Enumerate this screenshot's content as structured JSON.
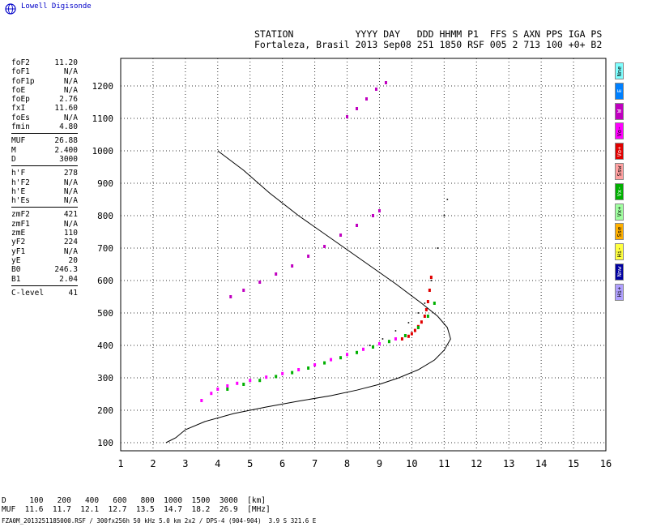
{
  "logo": {
    "text": "Lowell Digisonde"
  },
  "header": {
    "line1": "STATION           YYYY DAY   DDD HHMM P1  FFS S AXN PPS IGA PS",
    "line2": "Fortaleza, Brasil 2013 Sep08 251 1850 RSF 005 2 713 100 +0+ B2"
  },
  "params": {
    "group1": [
      {
        "k": "foF2",
        "v": "11.20"
      },
      {
        "k": "foF1",
        "v": "N/A"
      },
      {
        "k": "foF1p",
        "v": "N/A"
      },
      {
        "k": "foE",
        "v": "N/A"
      },
      {
        "k": "foEp",
        "v": "2.76"
      },
      {
        "k": "fxI",
        "v": "11.60"
      },
      {
        "k": "foEs",
        "v": "N/A"
      },
      {
        "k": "fmin",
        "v": "4.80"
      }
    ],
    "group2": [
      {
        "k": "MUF",
        "v": "26.88"
      },
      {
        "k": "M",
        "v": "2.400"
      },
      {
        "k": "D",
        "v": "3000"
      }
    ],
    "group3": [
      {
        "k": "h'F",
        "v": "278"
      },
      {
        "k": "h'F2",
        "v": "N/A"
      },
      {
        "k": "h'E",
        "v": "N/A"
      },
      {
        "k": "h'Es",
        "v": "N/A"
      }
    ],
    "group4": [
      {
        "k": "zmF2",
        "v": "421"
      },
      {
        "k": "zmF1",
        "v": "N/A"
      },
      {
        "k": "zmE",
        "v": "110"
      },
      {
        "k": "yF2",
        "v": "224"
      },
      {
        "k": "yF1",
        "v": "N/A"
      },
      {
        "k": "yE",
        "v": "20"
      },
      {
        "k": "B0",
        "v": "246.3"
      },
      {
        "k": "B1",
        "v": "2.04"
      }
    ],
    "group5": [
      {
        "k": "C-level",
        "v": "41"
      }
    ]
  },
  "legend": [
    {
      "label": "Nne",
      "color": "#7fffff"
    },
    {
      "label": "E",
      "color": "#0080ff"
    },
    {
      "label": "W",
      "color": "#c000c0"
    },
    {
      "label": "Vo-",
      "color": "#ff00ff"
    },
    {
      "label": "Vo+",
      "color": "#e00000"
    },
    {
      "label": "Ssw",
      "color": "#ffa0a0"
    },
    {
      "label": "Vx-",
      "color": "#00b000"
    },
    {
      "label": "Vx+",
      "color": "#a0ffa0"
    },
    {
      "label": "Sse",
      "color": "#ffb000"
    },
    {
      "label": "Hi-",
      "color": "#ffff40"
    },
    {
      "label": "Nnw",
      "color": "#0000a0"
    },
    {
      "label": "Hi+",
      "color": "#b0a0ff"
    }
  ],
  "muf_table": {
    "line1": "D     100   200   400   600   800  1000  1500  3000  [km]",
    "line2": "MUF  11.6  11.7  12.1  12.7  13.5  14.7  18.2  26.9  [MHz]"
  },
  "footer": {
    "text": "FZA0M_2013251185000.RSF / 300fx256h 50 kHz 5.0 km 2x2 / DPS-4 (904-904)  3.9 S 321.6 E"
  },
  "chart_data": {
    "type": "scatter",
    "xlabel": "",
    "ylabel": "",
    "xlim": [
      1,
      16
    ],
    "ylim": [
      75,
      1285
    ],
    "xticks": [
      1,
      2,
      3,
      4,
      5,
      6,
      7,
      8,
      9,
      10,
      11,
      12,
      13,
      14,
      15,
      16
    ],
    "yticks": [
      100,
      200,
      300,
      400,
      500,
      600,
      700,
      800,
      900,
      1000,
      1100,
      1200
    ],
    "grid": true,
    "series": [
      {
        "name": "Vo+",
        "color": "#e00000",
        "x": [
          9.7,
          9.9,
          10.0,
          10.1,
          10.2,
          10.3,
          10.4,
          10.45,
          10.5,
          10.55,
          10.6
        ],
        "y": [
          420,
          428,
          436,
          446,
          458,
          472,
          490,
          510,
          535,
          570,
          610
        ]
      },
      {
        "name": "Vo-",
        "color": "#ff00ff",
        "x": [
          3.5,
          3.8,
          4.0,
          4.3,
          4.6,
          5.0,
          5.5,
          6.0,
          6.5,
          7.0,
          7.5,
          8.0,
          8.5,
          9.0,
          9.5
        ],
        "y": [
          230,
          252,
          265,
          275,
          283,
          292,
          302,
          313,
          325,
          340,
          356,
          372,
          388,
          405,
          420
        ]
      },
      {
        "name": "Vx-",
        "color": "#00b000",
        "x": [
          4.3,
          4.8,
          5.3,
          5.8,
          6.3,
          6.8,
          7.3,
          7.8,
          8.3,
          8.8,
          9.3,
          9.8,
          10.2,
          10.5,
          10.7
        ],
        "y": [
          265,
          280,
          292,
          304,
          316,
          330,
          346,
          362,
          378,
          395,
          412,
          430,
          455,
          490,
          530
        ]
      },
      {
        "name": "Vo- 2F",
        "color": "#c000c0",
        "x": [
          4.4,
          4.8,
          5.3,
          5.8,
          6.3,
          6.8,
          7.3,
          7.8,
          8.3,
          8.8,
          9.0
        ],
        "y": [
          550,
          570,
          595,
          620,
          645,
          675,
          705,
          740,
          770,
          800,
          815
        ]
      },
      {
        "name": "Vo- 3F",
        "color": "#c000c0",
        "x": [
          8.0,
          8.3,
          8.6,
          8.9,
          9.2
        ],
        "y": [
          1105,
          1130,
          1160,
          1190,
          1210
        ]
      },
      {
        "name": "Profile",
        "color": "#000000",
        "x": [
          2.4,
          2.7,
          3.0,
          3.6,
          4.5,
          5.5,
          6.5,
          7.5,
          8.3,
          9.0,
          9.6,
          10.2,
          10.7,
          11.0,
          11.2,
          11.1,
          10.8,
          10.3,
          9.5,
          8.5,
          7.5,
          6.5,
          5.6,
          4.8,
          4.0
        ],
        "y": [
          100,
          115,
          140,
          165,
          190,
          210,
          228,
          245,
          262,
          280,
          300,
          325,
          355,
          385,
          420,
          455,
          490,
          530,
          590,
          660,
          730,
          800,
          870,
          940,
          1000
        ]
      },
      {
        "name": "Trace",
        "color": "#000000",
        "x": [
          8.7,
          9.1,
          9.5,
          9.9,
          10.2,
          10.4,
          10.6,
          10.8,
          11.0,
          11.1
        ],
        "y": [
          400,
          420,
          445,
          470,
          500,
          530,
          600,
          700,
          800,
          850
        ]
      }
    ]
  }
}
